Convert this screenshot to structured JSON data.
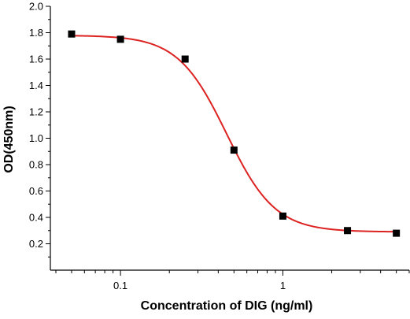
{
  "chart_data": {
    "type": "scatter",
    "title": "",
    "xlabel": "Concentration of DIG (ng/ml)",
    "ylabel": "OD(450nm)",
    "xscale": "log",
    "xlim": [
      0.037,
      6.0
    ],
    "ylim": [
      0.0,
      2.0
    ],
    "yticks": [
      0.2,
      0.4,
      0.6,
      0.8,
      1.0,
      1.2,
      1.4,
      1.6,
      1.8,
      2.0
    ],
    "ytick_labels": [
      "0.2",
      "0.4",
      "0.6",
      "0.8",
      "1.0",
      "1.2",
      "1.4",
      "1.6",
      "1.8",
      "2.0"
    ],
    "xticks": [
      0.1,
      1
    ],
    "xtick_labels": [
      "0.1",
      "1"
    ],
    "grid": false,
    "legend": "none",
    "series": [
      {
        "type": "scatter",
        "marker": "square",
        "color": "#000000",
        "x": [
          0.05,
          0.1,
          0.25,
          0.5,
          1.0,
          2.5,
          5.0
        ],
        "y": [
          1.79,
          1.75,
          1.6,
          0.91,
          0.41,
          0.3,
          0.28
        ]
      },
      {
        "type": "line",
        "fit": "four-parameter logistic",
        "color": "#dd2222",
        "params": {
          "top": 1.78,
          "bottom": 0.29,
          "ec50": 0.45,
          "hill": 2.9
        }
      }
    ]
  }
}
